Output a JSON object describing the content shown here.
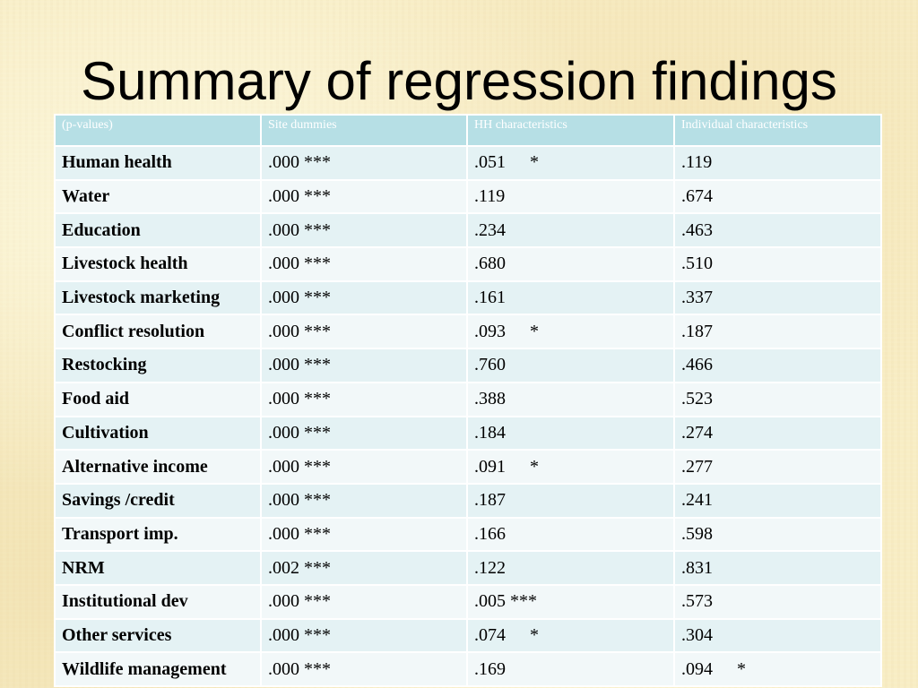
{
  "slide": {
    "title": "Summary of regression findings"
  },
  "table": {
    "headers": [
      "(p-values)",
      "Site dummies",
      "HH characteristics",
      "Individual characteristics"
    ],
    "rows": [
      {
        "label": "Human health",
        "site": ".000 ***",
        "hh_value": ".051",
        "hh_sig": "*",
        "ind_value": ".119",
        "ind_sig": ""
      },
      {
        "label": "Water",
        "site": ".000 ***",
        "hh_value": ".119",
        "hh_sig": "",
        "ind_value": ".674",
        "ind_sig": ""
      },
      {
        "label": "Education",
        "site": ".000 ***",
        "hh_value": ".234",
        "hh_sig": "",
        "ind_value": ".463",
        "ind_sig": ""
      },
      {
        "label": "Livestock health",
        "site": ".000 ***",
        "hh_value": ".680",
        "hh_sig": "",
        "ind_value": ".510",
        "ind_sig": ""
      },
      {
        "label": "Livestock marketing",
        "site": ".000 ***",
        "hh_value": ".161",
        "hh_sig": "",
        "ind_value": ".337",
        "ind_sig": ""
      },
      {
        "label": "Conflict resolution",
        "site": ".000 ***",
        "hh_value": ".093",
        "hh_sig": "*",
        "ind_value": ".187",
        "ind_sig": ""
      },
      {
        "label": "Restocking",
        "site": ".000 ***",
        "hh_value": ".760",
        "hh_sig": "",
        "ind_value": ".466",
        "ind_sig": ""
      },
      {
        "label": "Food aid",
        "site": ".000 ***",
        "hh_value": ".388",
        "hh_sig": "",
        "ind_value": ".523",
        "ind_sig": ""
      },
      {
        "label": "Cultivation",
        "site": ".000 ***",
        "hh_value": ".184",
        "hh_sig": "",
        "ind_value": ".274",
        "ind_sig": ""
      },
      {
        "label": "Alternative income",
        "site": ".000 ***",
        "hh_value": ".091",
        "hh_sig": "*",
        "ind_value": ".277",
        "ind_sig": ""
      },
      {
        "label": "Savings /credit",
        "site": ".000 ***",
        "hh_value": ".187",
        "hh_sig": "",
        "ind_value": ".241",
        "ind_sig": ""
      },
      {
        "label": "Transport imp.",
        "site": ".000 ***",
        "hh_value": ".166",
        "hh_sig": "",
        "ind_value": ".598",
        "ind_sig": ""
      },
      {
        "label": "NRM",
        "site": ".002 ***",
        "hh_value": ".122",
        "hh_sig": "",
        "ind_value": ".831",
        "ind_sig": ""
      },
      {
        "label": "Institutional dev",
        "site": ".000 ***",
        "hh_value": ".005 ***",
        "hh_sig": "",
        "ind_value": ".573",
        "ind_sig": ""
      },
      {
        "label": "Other services",
        "site": ".000 ***",
        "hh_value": ".074",
        "hh_sig": "*",
        "ind_value": ".304",
        "ind_sig": ""
      },
      {
        "label": "Wildlife management",
        "site": ".000 ***",
        "hh_value": ".169",
        "hh_sig": "",
        "ind_value": ".094",
        "ind_sig": "*"
      }
    ]
  },
  "colors": {
    "background": "#f8edc4",
    "header_fill": "#b6dfe5",
    "row_odd": "#e4f2f4",
    "row_even": "#f2f8f9"
  }
}
